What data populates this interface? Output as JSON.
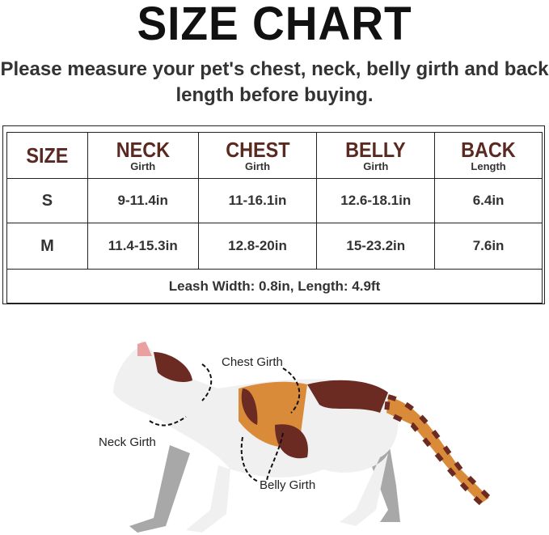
{
  "title": "SIZE CHART",
  "subtitle_line1": "Please measure your pet's chest, neck, belly girth and back",
  "subtitle_line2": "length before buying.",
  "table": {
    "headers": [
      {
        "main": "SIZE",
        "sub": ""
      },
      {
        "main": "NECK",
        "sub": "Girth"
      },
      {
        "main": "CHEST",
        "sub": "Girth"
      },
      {
        "main": "BELLY",
        "sub": "Girth"
      },
      {
        "main": "BACK",
        "sub": "Length"
      }
    ],
    "rows": [
      [
        "S",
        "9-11.4in",
        "11-16.1in",
        "12.6-18.1in",
        "6.4in"
      ],
      [
        "M",
        "11.4-15.3in",
        "12.8-20in",
        "15-23.2in",
        "7.6in"
      ]
    ],
    "footer": "Leash Width: 0.8in, Length: 4.9ft"
  },
  "diagram": {
    "labels": {
      "chest": "Chest Girth",
      "neck": "Neck  Girth",
      "belly": "Belly Girth"
    }
  },
  "colors": {
    "header": "#5a2a22",
    "cat_orange": "#d98b3a",
    "cat_brown": "#6b2a22",
    "cat_gray": "#a8a8a8"
  }
}
